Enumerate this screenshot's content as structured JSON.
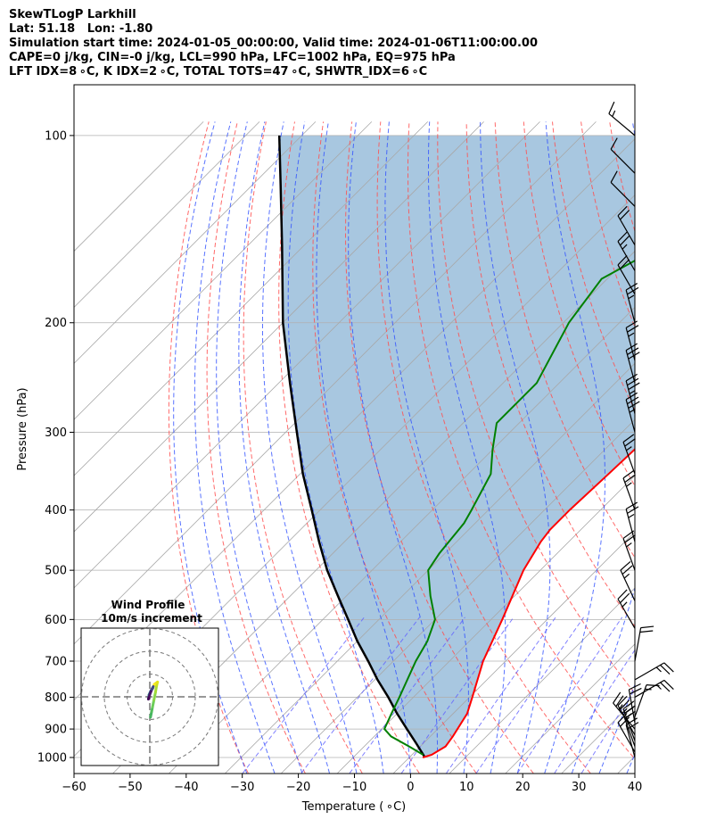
{
  "header": {
    "title": "SkewTLogP Larkhill",
    "location": "Lat: 51.18   Lon: -1.80",
    "times": "Simulation start time: 2024-01-05_00:00:00, Valid time: 2024-01-06T11:00:00.00",
    "indices1": "CAPE=0 j/kg, CIN=-0 j/kg, LCL=990 hPa, LFC=1002 hPa, EQ=975 hPa",
    "indices2": "LFT IDX=8 ∘C, K IDX=2 ∘C, TOTAL TOTS=47 ∘C, SHWTR_IDX=6 ∘C"
  },
  "chart_data": {
    "type": "line",
    "chart_kind": "Skew-T log-P diagram",
    "xlabel": "Temperature ($^\\circ$C)",
    "xlabel_display": "Temperature ( ∘C)",
    "ylabel": "Pressure (hPa)",
    "xlim": [
      -60,
      40
    ],
    "ylim": [
      1050,
      100
    ],
    "y_scale": "log",
    "x_ticks": [
      "−60",
      "−50",
      "−40",
      "−30",
      "−20",
      "−10",
      "0",
      "10",
      "20",
      "30",
      "40"
    ],
    "y_ticks": [
      "1000",
      "900",
      "800",
      "700",
      "600",
      "500",
      "400",
      "300",
      "200",
      "100"
    ],
    "grid": true,
    "colors": {
      "temperature": "#ff0000",
      "dewpoint": "#008000",
      "parcel": "#000000",
      "cape_fill": "#a3c4de",
      "dry_adiabats": "#ff0000",
      "moist_adiabats": "#0000ff",
      "mixing_ratio": "#0000ff",
      "isotherms": "#999999"
    },
    "series": [
      {
        "key": "temperature",
        "points": [
          [
            1000,
            2.4
          ],
          [
            990,
            3.5
          ],
          [
            960,
            4.5
          ],
          [
            925,
            4
          ],
          [
            850,
            2.5
          ],
          [
            800,
            0.5
          ],
          [
            700,
            -4
          ],
          [
            600,
            -8
          ],
          [
            500,
            -13
          ],
          [
            450,
            -15
          ],
          [
            430,
            -15.5
          ],
          [
            400,
            -15.5
          ],
          [
            350,
            -15
          ],
          [
            300,
            -14.5
          ],
          [
            270,
            -14
          ],
          [
            250,
            -14
          ],
          [
            200,
            -15
          ],
          [
            170,
            -15.5
          ],
          [
            150,
            -16
          ],
          [
            130,
            -18
          ],
          [
            115,
            -21
          ],
          [
            100,
            -25
          ]
        ]
      },
      {
        "key": "dewpoint",
        "points": [
          [
            990,
            2
          ],
          [
            960,
            -2
          ],
          [
            925,
            -7
          ],
          [
            900,
            -9.5
          ],
          [
            850,
            -11
          ],
          [
            800,
            -12.5
          ],
          [
            700,
            -16
          ],
          [
            650,
            -17.5
          ],
          [
            600,
            -20
          ],
          [
            550,
            -25
          ],
          [
            500,
            -30
          ],
          [
            470,
            -31
          ],
          [
            420,
            -32
          ],
          [
            400,
            -33
          ],
          [
            350,
            -36
          ],
          [
            320,
            -40
          ],
          [
            290,
            -44
          ],
          [
            250,
            -44
          ],
          [
            200,
            -49
          ],
          [
            170,
            -51
          ],
          [
            150,
            -46
          ],
          [
            120,
            -41
          ],
          [
            100,
            -38
          ]
        ]
      },
      {
        "key": "parcel",
        "points": [
          [
            1000,
            2.8
          ],
          [
            950,
            -1.2
          ],
          [
            900,
            -5.5
          ],
          [
            850,
            -10
          ],
          [
            800,
            -14.5
          ],
          [
            750,
            -19.5
          ],
          [
            700,
            -24.5
          ],
          [
            650,
            -30
          ],
          [
            600,
            -35.5
          ],
          [
            550,
            -41.5
          ],
          [
            500,
            -48
          ],
          [
            450,
            -54.5
          ],
          [
            400,
            -61.5
          ],
          [
            350,
            -69.5
          ],
          [
            300,
            -78
          ],
          [
            250,
            -88
          ],
          [
            200,
            -100
          ],
          [
            150,
            -114
          ],
          [
            120,
            -125
          ],
          [
            100,
            -134
          ]
        ]
      }
    ],
    "wind_barbs": [
      {
        "p": 1000,
        "ws": 20,
        "wd": 345
      },
      {
        "p": 980,
        "ws": 20,
        "wd": 330
      },
      {
        "p": 960,
        "ws": 20,
        "wd": 340
      },
      {
        "p": 940,
        "ws": 25,
        "wd": 340
      },
      {
        "p": 920,
        "ws": 25,
        "wd": 330
      },
      {
        "p": 900,
        "ws": 25,
        "wd": 320
      },
      {
        "p": 880,
        "ws": 20,
        "wd": 350
      },
      {
        "p": 860,
        "ws": 15,
        "wd": 20
      },
      {
        "p": 800,
        "ws": 25,
        "wd": 60
      },
      {
        "p": 750,
        "ws": 25,
        "wd": 60
      },
      {
        "p": 700,
        "ws": 20,
        "wd": 10
      },
      {
        "p": 620,
        "ws": 25,
        "wd": 330
      },
      {
        "p": 560,
        "ws": 25,
        "wd": 335
      },
      {
        "p": 500,
        "ws": 25,
        "wd": 340
      },
      {
        "p": 450,
        "ws": 25,
        "wd": 345
      },
      {
        "p": 400,
        "ws": 25,
        "wd": 340
      },
      {
        "p": 350,
        "ws": 25,
        "wd": 340
      },
      {
        "p": 300,
        "ws": 35,
        "wd": 345
      },
      {
        "p": 280,
        "ws": 35,
        "wd": 345
      },
      {
        "p": 250,
        "ws": 30,
        "wd": 345
      },
      {
        "p": 230,
        "ws": 25,
        "wd": 345
      },
      {
        "p": 200,
        "ws": 25,
        "wd": 345
      },
      {
        "p": 180,
        "ws": 20,
        "wd": 330
      },
      {
        "p": 165,
        "ws": 25,
        "wd": 330
      },
      {
        "p": 150,
        "ws": 20,
        "wd": 330
      },
      {
        "p": 130,
        "ws": 10,
        "wd": 315
      },
      {
        "p": 115,
        "ws": 10,
        "wd": 315
      },
      {
        "p": 100,
        "ws": 15,
        "wd": 310
      }
    ],
    "hodograph": {
      "title": "Wind Profile",
      "subtitle": "10m/s increment",
      "rings": [
        10,
        20,
        30
      ],
      "points": [
        [
          0.3,
          -9
        ],
        [
          0.8,
          -6.5
        ],
        [
          1.2,
          -4.5
        ],
        [
          1.8,
          -1.5
        ],
        [
          2.5,
          2
        ],
        [
          3,
          5
        ],
        [
          3.4,
          6.5
        ],
        [
          2,
          5.5
        ],
        [
          1.3,
          3.8
        ],
        [
          0.4,
          2.5
        ],
        [
          -0.3,
          1
        ],
        [
          -0.6,
          -1
        ],
        [
          -0.2,
          0.5
        ],
        [
          0.9,
          3.3
        ],
        [
          1.5,
          4.5
        ]
      ]
    }
  }
}
